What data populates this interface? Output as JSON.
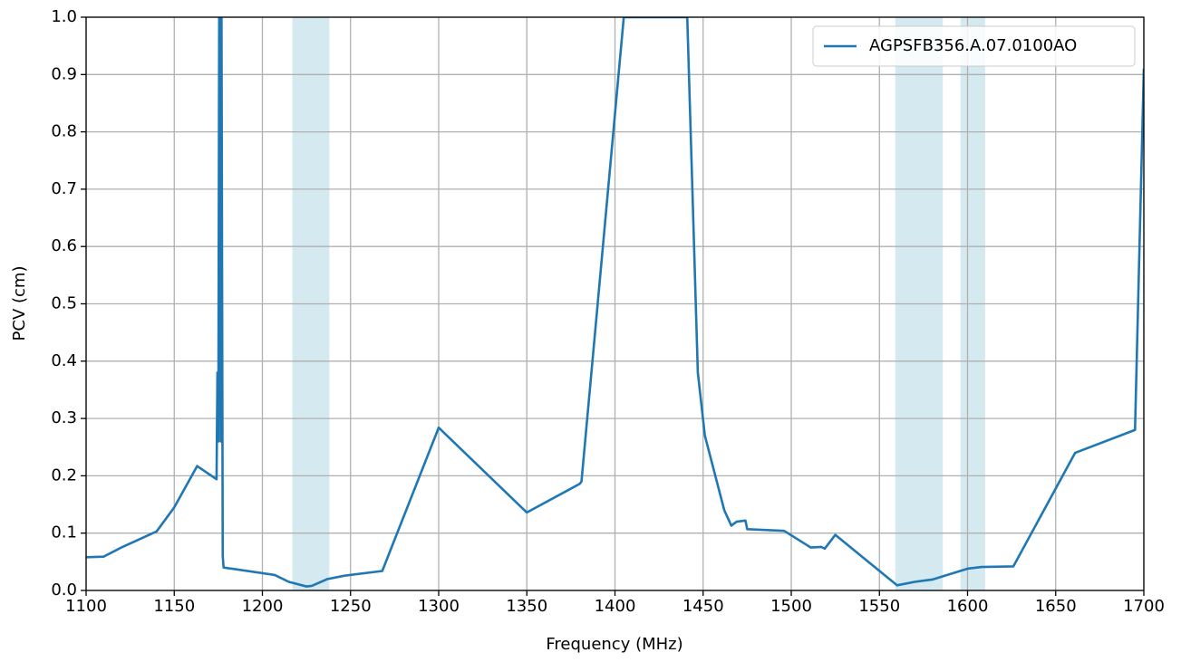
{
  "chart_data": {
    "type": "line",
    "xlabel": "Frequency (MHz)",
    "ylabel": "PCV (cm)",
    "xlim": [
      1100,
      1700
    ],
    "ylim": [
      0,
      1
    ],
    "xticks": [
      1100,
      1150,
      1200,
      1250,
      1300,
      1350,
      1400,
      1450,
      1500,
      1550,
      1600,
      1650,
      1700
    ],
    "yticks": [
      {
        "value": 0,
        "label": "0.0"
      },
      0.1,
      0.2,
      0.3,
      0.4,
      0.5,
      0.6,
      0.7,
      0.8,
      0.9,
      {
        "value": 1,
        "label": "1.0"
      }
    ],
    "grid": true,
    "legend": "upper right",
    "spans": [
      [
        1217,
        1238
      ],
      [
        1559,
        1586
      ],
      [
        1596,
        1610
      ]
    ],
    "span_color": "#d5e9f0",
    "series": [
      {
        "name": "AGPSFB356.A.07.0100AO",
        "color": "#1f77b4",
        "x": [
          1100,
          1110,
          1120,
          1140,
          1150,
          1163,
          1174,
          1174.5,
          1175,
          1175.5,
          1176,
          1176.4,
          1176.8,
          1177.5,
          1178,
          1207,
          1215,
          1225,
          1228,
          1237,
          1247,
          1268,
          1300,
          1350,
          1380,
          1381,
          1405,
          1441,
          1447,
          1451,
          1462,
          1466,
          1469,
          1474,
          1475,
          1496,
          1511,
          1517,
          1519,
          1525,
          1560,
          1570,
          1580,
          1600,
          1608,
          1626,
          1661,
          1695,
          1700
        ],
        "values": [
          0.058,
          0.059,
          0.075,
          0.103,
          0.145,
          0.217,
          0.194,
          0.38,
          0.26,
          1.0,
          1.0,
          0.26,
          1.0,
          0.06,
          0.04,
          0.027,
          0.015,
          0.007,
          0.008,
          0.02,
          0.026,
          0.034,
          0.284,
          0.136,
          0.186,
          0.19,
          1.0,
          1.0,
          0.38,
          0.27,
          0.14,
          0.113,
          0.12,
          0.122,
          0.107,
          0.104,
          0.075,
          0.076,
          0.073,
          0.097,
          0.009,
          0.015,
          0.019,
          0.038,
          0.041,
          0.042,
          0.24,
          0.28,
          0.91
        ]
      }
    ]
  }
}
